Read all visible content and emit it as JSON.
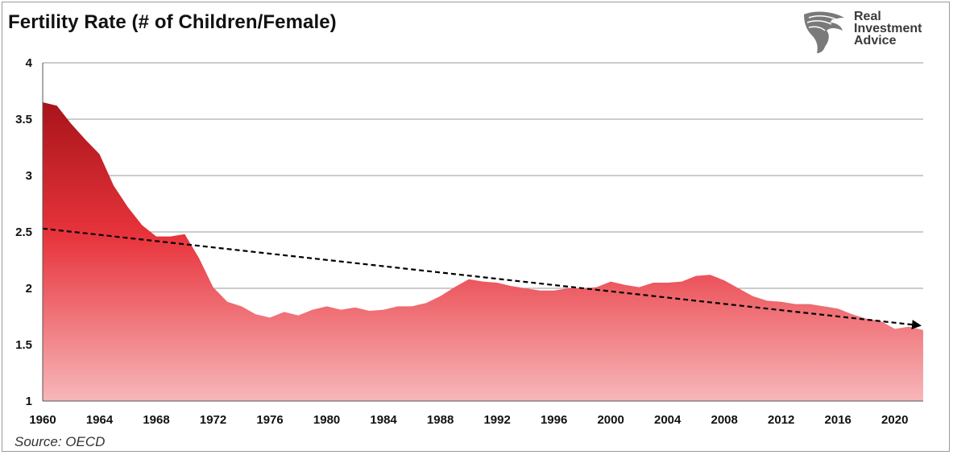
{
  "title": "Fertility Rate (# of Children/Female)",
  "source": "Source: OECD",
  "logo": {
    "line1": "Real",
    "line2": "Investment",
    "line3": "Advice",
    "icon": "eagle-head-icon"
  },
  "colors": {
    "area_top": "#a8141a",
    "area_mid": "#e8343c",
    "area_bottom": "#f7b7ba",
    "trend": "#000000",
    "grid": "#9a9a9a"
  },
  "chart_data": {
    "type": "area",
    "title": "Fertility Rate (# of Children/Female)",
    "xlabel": "",
    "ylabel": "",
    "xlim": [
      1960,
      2022
    ],
    "ylim": [
      1,
      4
    ],
    "yticks": [
      "1",
      "1.5",
      "2",
      "2.5",
      "3",
      "3.5",
      "4"
    ],
    "xticks": [
      "1960",
      "1964",
      "1968",
      "1972",
      "1976",
      "1980",
      "1984",
      "1988",
      "1992",
      "1996",
      "2000",
      "2004",
      "2008",
      "2012",
      "2016",
      "2020"
    ],
    "grid": true,
    "series": [
      {
        "x": [
          1960,
          1961,
          1962,
          1963,
          1964,
          1965,
          1966,
          1967,
          1968,
          1969,
          1970,
          1971,
          1972,
          1973,
          1974,
          1975,
          1976,
          1977,
          1978,
          1979,
          1980,
          1981,
          1982,
          1983,
          1984,
          1985,
          1986,
          1987,
          1988,
          1989,
          1990,
          1991,
          1992,
          1993,
          1994,
          1995,
          1996,
          1997,
          1998,
          1999,
          2000,
          2001,
          2002,
          2003,
          2004,
          2005,
          2006,
          2007,
          2008,
          2009,
          2010,
          2011,
          2012,
          2013,
          2014,
          2015,
          2016,
          2017,
          2018,
          2019,
          2020,
          2021,
          2022
        ],
        "values": [
          3.65,
          3.62,
          3.46,
          3.32,
          3.19,
          2.91,
          2.72,
          2.56,
          2.46,
          2.46,
          2.48,
          2.27,
          2.01,
          1.88,
          1.84,
          1.77,
          1.74,
          1.79,
          1.76,
          1.81,
          1.84,
          1.81,
          1.83,
          1.8,
          1.81,
          1.84,
          1.84,
          1.87,
          1.93,
          2.01,
          2.08,
          2.06,
          2.05,
          2.02,
          2.0,
          1.98,
          1.98,
          2.0,
          2.0,
          2.01,
          2.06,
          2.03,
          2.01,
          2.05,
          2.05,
          2.06,
          2.11,
          2.12,
          2.07,
          2.0,
          1.93,
          1.89,
          1.88,
          1.86,
          1.86,
          1.84,
          1.82,
          1.77,
          1.73,
          1.71,
          1.64,
          1.66,
          1.63
        ]
      }
    ],
    "trend": {
      "x": [
        1960,
        2022
      ],
      "y": [
        2.53,
        1.67
      ],
      "style": "dashed-arrow"
    }
  }
}
